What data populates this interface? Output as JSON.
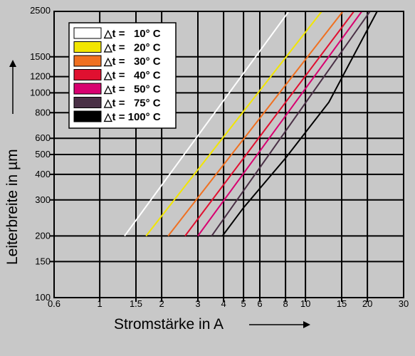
{
  "chart_data": {
    "type": "line",
    "xscale": "log",
    "yscale": "log",
    "xlim": [
      0.6,
      30
    ],
    "ylim": [
      100,
      2500
    ],
    "xlabel": "Stromstärke in A",
    "ylabel": "Leiterbreite in µm",
    "x_ticks": [
      0.6,
      1,
      1.5,
      2,
      3,
      4,
      5,
      6,
      8,
      10,
      15,
      20,
      30
    ],
    "x_tick_labels": [
      "0.6",
      "1",
      "1.5",
      "2",
      "3",
      "4",
      "5",
      "6",
      "8",
      "10",
      "15",
      "20",
      "30"
    ],
    "y_ticks": [
      100,
      150,
      200,
      300,
      400,
      500,
      600,
      800,
      1000,
      1200,
      1500,
      2500
    ],
    "y_tick_labels": [
      "100",
      "150",
      "200",
      "300",
      "400",
      "500",
      "600",
      "800",
      "1000",
      "1200",
      "1500",
      "2500"
    ],
    "grid": true,
    "legend_position": "top-left",
    "series": [
      {
        "name": "△t =   10° C",
        "color": "#ffffff",
        "x": [
          1.32,
          8.3
        ],
        "y": [
          200,
          2500
        ]
      },
      {
        "name": "△t =   20° C",
        "color": "#f2e600",
        "x": [
          1.68,
          12.0
        ],
        "y": [
          200,
          2500
        ]
      },
      {
        "name": "△t =   30° C",
        "color": "#f07020",
        "x": [
          2.15,
          15.2
        ],
        "y": [
          200,
          2500
        ]
      },
      {
        "name": "△t =   40° C",
        "color": "#e01030",
        "x": [
          2.6,
          17.2
        ],
        "y": [
          200,
          2500
        ]
      },
      {
        "name": "△t =   50° C",
        "color": "#d80070",
        "x": [
          3.0,
          18.8
        ],
        "y": [
          200,
          2500
        ]
      },
      {
        "name": "△t =   75° C",
        "color": "#4a3046",
        "x": [
          3.5,
          20.6
        ],
        "y": [
          200,
          2500
        ]
      },
      {
        "name": "△t = 100° C",
        "color": "#000000",
        "x": [
          3.95,
          5.0,
          8.0,
          13.0,
          22.3
        ],
        "y": [
          200,
          275,
          480,
          900,
          2500
        ]
      }
    ]
  }
}
